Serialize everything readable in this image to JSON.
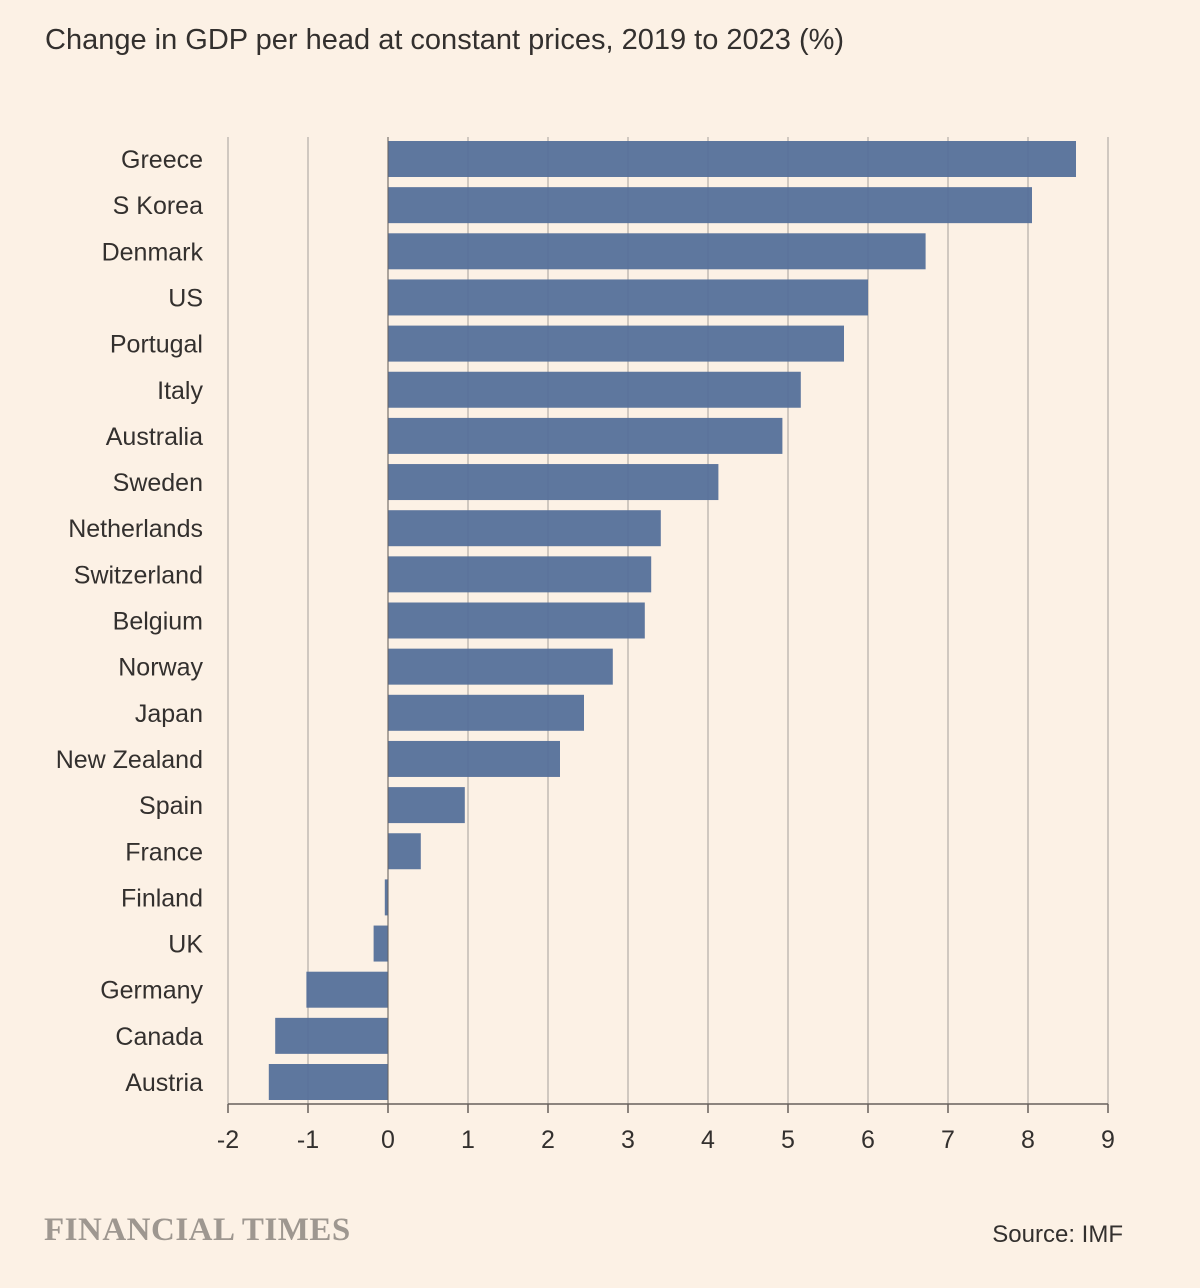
{
  "colors": {
    "background": "#fcf1e5",
    "bar": "#55709a",
    "grid": "#b8b2ab",
    "axis": "#66605c",
    "text": "#33302e",
    "brand": "#9e9790"
  },
  "brand": "FINANCIAL TIMES",
  "source": "Source: IMF",
  "chart_data": {
    "type": "bar",
    "orientation": "horizontal",
    "title": "Change in GDP per head at constant prices, 2019 to 2023 (%)",
    "xlabel": "",
    "ylabel": "",
    "xlim": [
      -2,
      9
    ],
    "ticks": [
      "-2",
      "-1",
      "0",
      "1",
      "2",
      "3",
      "4",
      "5",
      "6",
      "7",
      "8",
      "9"
    ],
    "grid": true,
    "categories": [
      "Greece",
      "S Korea",
      "Denmark",
      "US",
      "Portugal",
      "Italy",
      "Australia",
      "Sweden",
      "Netherlands",
      "Switzerland",
      "Belgium",
      "Norway",
      "Japan",
      "New Zealand",
      "Spain",
      "France",
      "Finland",
      "UK",
      "Germany",
      "Canada",
      "Austria"
    ],
    "values": [
      8.6,
      8.05,
      6.72,
      6.0,
      5.7,
      5.16,
      4.93,
      4.13,
      3.41,
      3.29,
      3.21,
      2.81,
      2.45,
      2.15,
      0.96,
      0.41,
      -0.04,
      -0.18,
      -1.02,
      -1.41,
      -1.49
    ]
  }
}
